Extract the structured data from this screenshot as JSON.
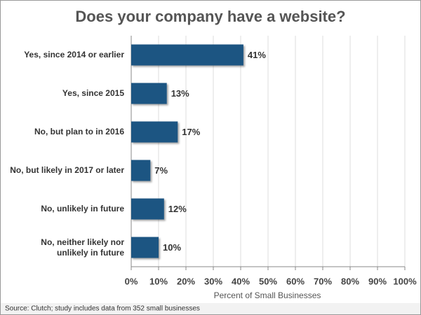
{
  "chart_data": {
    "type": "bar",
    "orientation": "horizontal",
    "title": "Does your company have a website?",
    "categories": [
      "Yes, since 2014 or earlier",
      "Yes, since 2015",
      "No, but plan to in 2016",
      "No, but likely in 2017 or later",
      "No, unlikely in future",
      "No, neither likely nor\nunlikely in future"
    ],
    "values": [
      41,
      13,
      17,
      7,
      12,
      10
    ],
    "value_labels": [
      "41%",
      "13%",
      "17%",
      "7%",
      "12%",
      "10%"
    ],
    "color": "#1f5582",
    "xlim": [
      0,
      100
    ],
    "xticks": [
      {
        "value": 0,
        "label": "0%"
      },
      {
        "value": 10,
        "label": "10%"
      },
      {
        "value": 20,
        "label": "20%"
      },
      {
        "value": 30,
        "label": "30%"
      },
      {
        "value": 40,
        "label": "40%"
      },
      {
        "value": 50,
        "label": "50%"
      },
      {
        "value": 60,
        "label": "60%"
      },
      {
        "value": 70,
        "label": "70%"
      },
      {
        "value": 80,
        "label": "80%"
      },
      {
        "value": 90,
        "label": "90%"
      },
      {
        "value": 100,
        "label": "100%"
      }
    ],
    "xlabel": "Percent of Small Businesses",
    "grid": true,
    "source": "Source: Clutch; study includes data from 352 small businesses"
  }
}
